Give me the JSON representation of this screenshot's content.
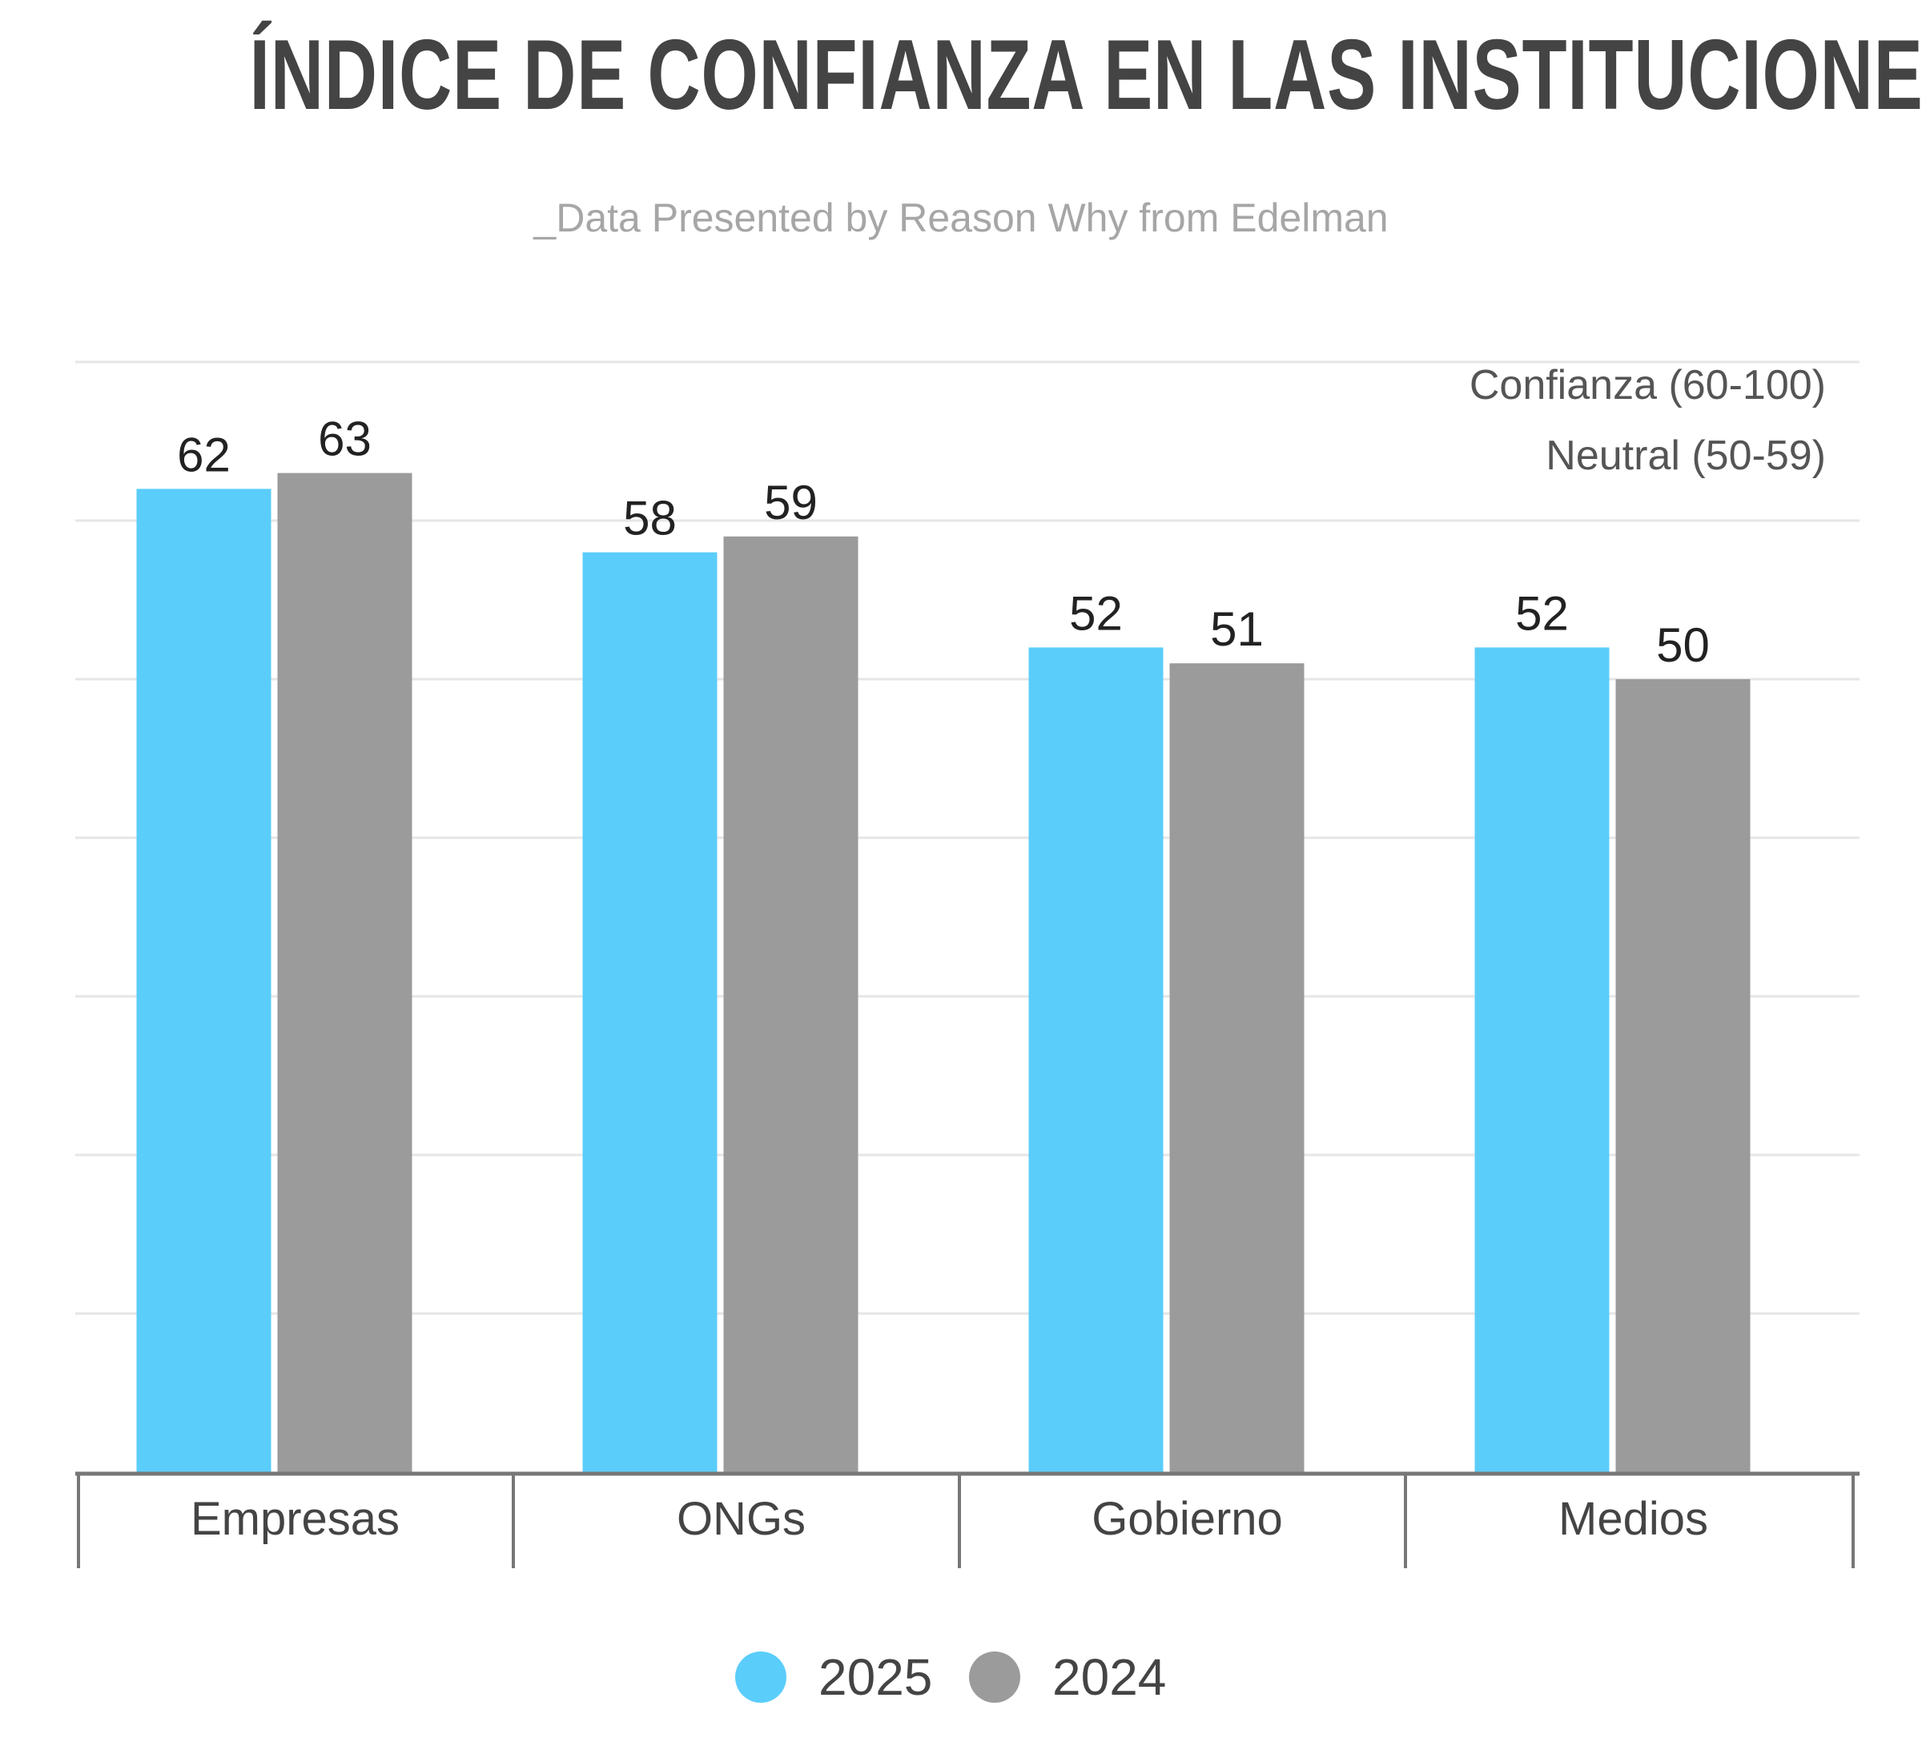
{
  "title": "ÍNDICE DE CONFIANZA EN LAS INSTITUCIONES",
  "subtitle": "_Data Presented by Reason Why from Edelman",
  "annotations": [
    "Confianza (60-100)",
    "Neutral (50-59)"
  ],
  "colors": {
    "series_2025": "#5bcdfb",
    "series_2024": "#9b9b9b",
    "text": "#444444",
    "grid": "#e6e6e6",
    "axis": "#777777"
  },
  "chart_data": {
    "type": "bar",
    "title": "ÍNDICE DE CONFIANZA EN LAS INSTITUCIONES",
    "subtitle": "_Data Presented by Reason Why from Edelman",
    "xlabel": "",
    "ylabel": "",
    "categories": [
      "Empresas",
      "ONGs",
      "Gobierno",
      "Medios"
    ],
    "series": [
      {
        "name": "2025",
        "values": [
          62,
          58,
          52,
          52
        ]
      },
      {
        "name": "2024",
        "values": [
          63,
          59,
          51,
          50
        ]
      }
    ],
    "ylim": [
      0,
      70
    ],
    "grid": true,
    "legend": "bottom-center"
  }
}
